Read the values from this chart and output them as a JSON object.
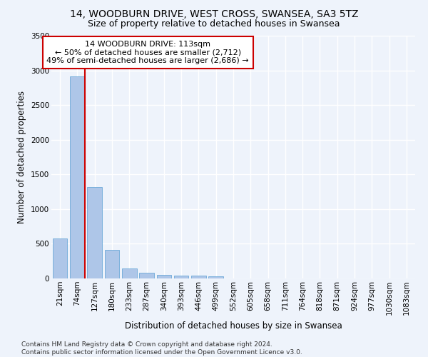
{
  "title_line1": "14, WOODBURN DRIVE, WEST CROSS, SWANSEA, SA3 5TZ",
  "title_line2": "Size of property relative to detached houses in Swansea",
  "xlabel": "Distribution of detached houses by size in Swansea",
  "ylabel": "Number of detached properties",
  "bin_labels": [
    "21sqm",
    "74sqm",
    "127sqm",
    "180sqm",
    "233sqm",
    "287sqm",
    "340sqm",
    "393sqm",
    "446sqm",
    "499sqm",
    "552sqm",
    "605sqm",
    "658sqm",
    "711sqm",
    "764sqm",
    "818sqm",
    "871sqm",
    "924sqm",
    "977sqm",
    "1030sqm",
    "1083sqm"
  ],
  "bar_heights": [
    575,
    2910,
    1315,
    415,
    145,
    80,
    55,
    45,
    40,
    35,
    0,
    0,
    0,
    0,
    0,
    0,
    0,
    0,
    0,
    0,
    0
  ],
  "bar_color": "#aec6e8",
  "bar_edgecolor": "#5a9fd4",
  "annotation_line1": "14 WOODBURN DRIVE: 113sqm",
  "annotation_line2": "← 50% of detached houses are smaller (2,712)",
  "annotation_line3": "49% of semi-detached houses are larger (2,686) →",
  "annotation_box_color": "#ffffff",
  "annotation_box_edgecolor": "#cc0000",
  "vertical_line_color": "#cc0000",
  "vertical_line_x": 1.43,
  "ylim": [
    0,
    3500
  ],
  "yticks": [
    0,
    500,
    1000,
    1500,
    2000,
    2500,
    3000,
    3500
  ],
  "footnote_line1": "Contains HM Land Registry data © Crown copyright and database right 2024.",
  "footnote_line2": "Contains public sector information licensed under the Open Government Licence v3.0.",
  "background_color": "#eef3fb",
  "grid_color": "#ffffff",
  "title_fontsize": 10,
  "subtitle_fontsize": 9,
  "axis_label_fontsize": 8.5,
  "tick_fontsize": 7.5,
  "annotation_fontsize": 8,
  "footnote_fontsize": 6.5
}
